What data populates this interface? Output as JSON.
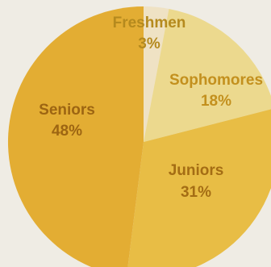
{
  "chart_data": {
    "type": "pie",
    "title": "",
    "start_angle_deg": 0,
    "direction": "clockwise",
    "slices": [
      {
        "label": "Freshmen",
        "value_label": "3%",
        "value": 3,
        "color": "#efe2c4",
        "text_color": "#b58a1e"
      },
      {
        "label": "Sophomores",
        "value_label": "18%",
        "value": 18,
        "color": "#ecd98e",
        "text_color": "#c3901e"
      },
      {
        "label": "Juniors",
        "value_label": "31%",
        "value": 31,
        "color": "#e8bd45",
        "text_color": "#a46d14"
      },
      {
        "label": "Seniors",
        "value_label": "48%",
        "value": 48,
        "color": "#e3ad33",
        "text_color": "#9d6512"
      }
    ]
  }
}
